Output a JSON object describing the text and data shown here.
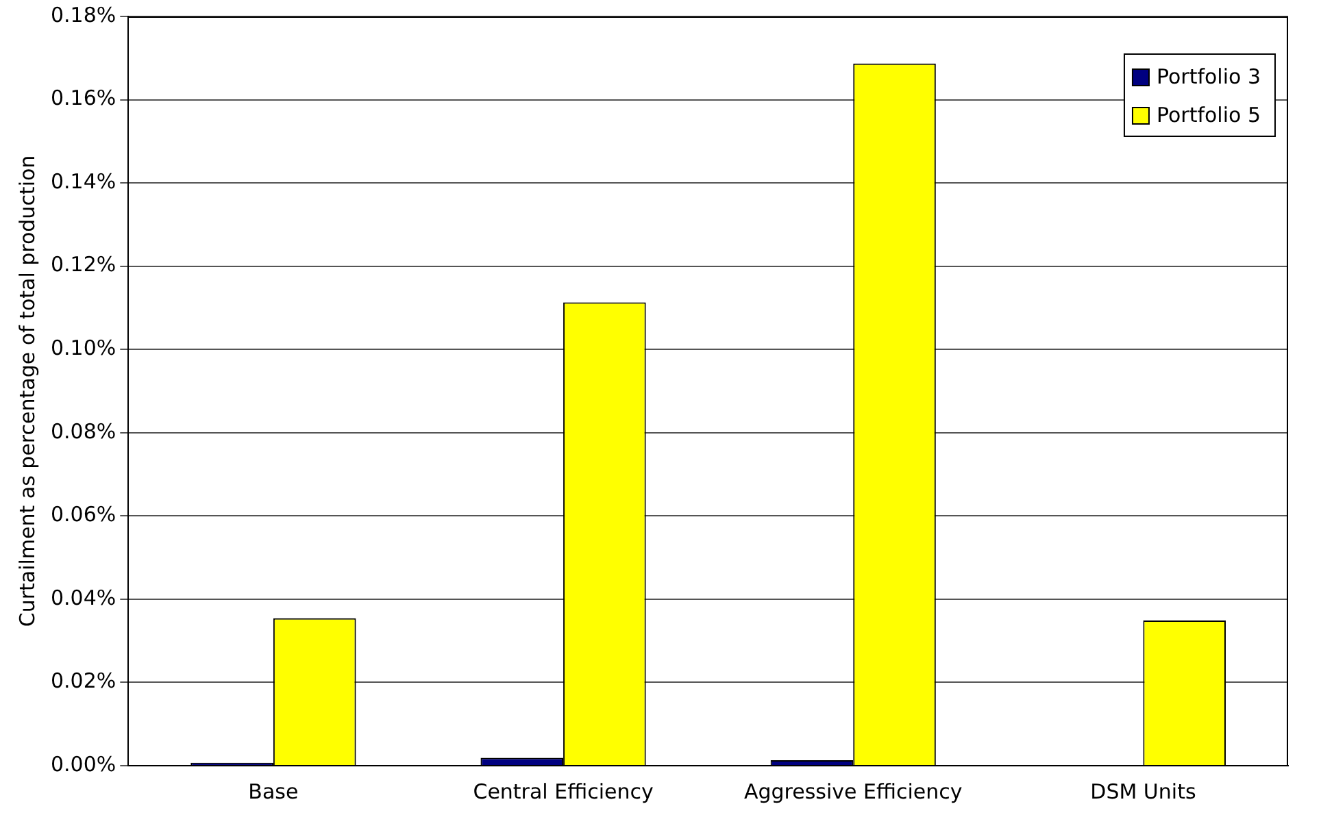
{
  "chart_data": {
    "type": "bar",
    "ylabel": "Curtailment as percentage of total production",
    "categories": [
      "Base",
      "Central Efficiency",
      "Aggressive Efficiency",
      "DSM Units"
    ],
    "series": [
      {
        "name": "Portfolio 3",
        "color": "#000080",
        "values": [
          0.0007,
          0.0019,
          0.0013,
          0
        ]
      },
      {
        "name": "Portfolio 5",
        "color": "#ffff00",
        "values": [
          0.0354,
          0.1113,
          0.1687,
          0.0349
        ]
      }
    ],
    "ylim": [
      0,
      0.18
    ],
    "yticks": [
      {
        "value": 0,
        "label": "0.00%"
      },
      {
        "value": 0.02,
        "label": "0.02%"
      },
      {
        "value": 0.04,
        "label": "0.04%"
      },
      {
        "value": 0.06,
        "label": "0.06%"
      },
      {
        "value": 0.08,
        "label": "0.08%"
      },
      {
        "value": 0.1,
        "label": "0.10%"
      },
      {
        "value": 0.12,
        "label": "0.12%"
      },
      {
        "value": 0.14,
        "label": "0.14%"
      },
      {
        "value": 0.16,
        "label": "0.16%"
      },
      {
        "value": 0.18,
        "label": "0.18%"
      }
    ],
    "grid": "y",
    "legend": "top right"
  }
}
